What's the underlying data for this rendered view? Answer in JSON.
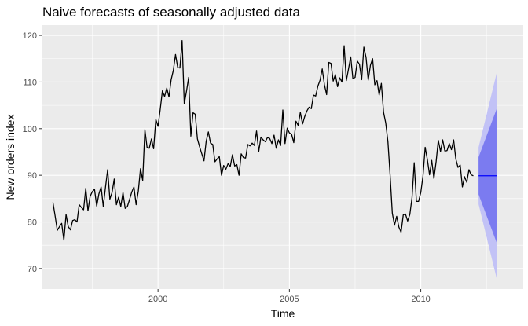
{
  "chart_data": {
    "type": "line",
    "title": "Naive forecasts of seasonally adjusted data",
    "xlabel": "Time",
    "ylabel": "New orders index",
    "xlim": [
      1995.6,
      2013.9
    ],
    "ylim": [
      65.6,
      122.2
    ],
    "x_ticks": [
      2000,
      2005,
      2010
    ],
    "y_ticks": [
      70,
      80,
      90,
      100,
      110,
      120
    ],
    "grid": true,
    "legend": "none",
    "colors": {
      "panel_bg": "#ebebeb",
      "grid": "#ffffff",
      "series_line": "#000000",
      "forecast_line": "#0000ff",
      "pi80_fill": "#7b7bf0",
      "pi95_fill": "#c2c2f6"
    },
    "series": [
      {
        "x_start": 1996.0,
        "x_step": 0.0833333,
        "values": [
          84.2,
          81.3,
          78.2,
          79.0,
          79.7,
          76.1,
          81.6,
          79.0,
          78.3,
          80.3,
          80.5,
          80.0,
          83.7,
          83.1,
          82.6,
          87.2,
          82.4,
          85.5,
          86.5,
          87.0,
          83.4,
          86.0,
          87.5,
          83.3,
          87.4,
          91.2,
          84.9,
          86.3,
          89.2,
          83.7,
          85.3,
          83.3,
          86.3,
          82.9,
          83.3,
          84.8,
          86.4,
          87.5,
          83.7,
          86.6,
          91.4,
          88.9,
          99.8,
          96.0,
          95.8,
          97.8,
          95.7,
          102.0,
          100.5,
          104.1,
          108.1,
          106.9,
          108.7,
          106.8,
          110.5,
          112.5,
          115.9,
          113.1,
          113.0,
          118.9,
          105.3,
          108.0,
          111.0,
          98.4,
          103.4,
          103.1,
          97.8,
          96.1,
          94.6,
          93.1,
          97.3,
          99.3,
          96.9,
          96.6,
          92.9,
          93.5,
          94.0,
          90.0,
          92.1,
          91.3,
          92.5,
          91.9,
          94.4,
          92.0,
          92.3,
          90.0,
          94.6,
          93.8,
          93.7,
          96.6,
          96.3,
          96.9,
          96.4,
          99.5,
          95.1,
          98.2,
          97.6,
          97.2,
          98.1,
          97.9,
          96.8,
          98.6,
          95.8,
          97.6,
          96.4,
          104.0,
          96.8,
          100.1,
          99.1,
          98.8,
          97.0,
          101.6,
          100.7,
          103.5,
          101.0,
          102.6,
          103.8,
          104.6,
          104.3,
          107.2,
          107.0,
          109.1,
          110.4,
          112.8,
          109.4,
          107.3,
          114.2,
          114.0,
          110.2,
          111.6,
          109.0,
          110.9,
          110.0,
          117.8,
          110.3,
          112.8,
          115.4,
          110.7,
          111.0,
          114.5,
          113.8,
          110.5,
          117.5,
          115.3,
          110.4,
          113.6,
          115.0,
          109.4,
          110.3,
          107.2,
          109.7,
          103.5,
          101.2,
          97.2,
          90.0,
          81.9,
          79.3,
          81.2,
          78.9,
          77.8,
          81.5,
          81.7,
          80.2,
          81.6,
          85.2,
          92.7,
          84.4,
          84.4,
          86.3,
          89.8,
          96.0,
          93.4,
          90.1,
          93.2,
          89.3,
          92.9,
          97.5,
          95.1,
          97.6,
          95.2,
          95.3,
          96.8,
          95.5,
          97.6,
          93.5,
          91.7,
          92.2,
          87.5,
          89.7,
          88.5,
          91.2,
          90.1,
          89.9
        ]
      }
    ],
    "forecast": {
      "x_start": 2012.2,
      "x_end": 2012.9,
      "point": 89.9,
      "pi80": {
        "lower_start": 85.9,
        "upper_start": 93.9,
        "lower_end": 75.4,
        "upper_end": 104.4
      },
      "pi95": {
        "lower_start": 83.8,
        "upper_start": 96.0,
        "lower_end": 67.6,
        "upper_end": 112.2
      }
    }
  }
}
